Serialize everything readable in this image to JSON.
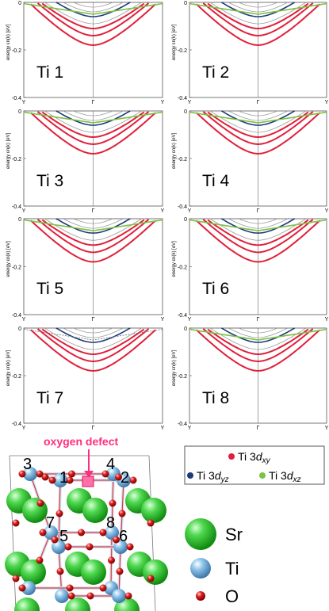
{
  "panels": [
    {
      "label": "Ti 1"
    },
    {
      "label": "Ti 2"
    },
    {
      "label": "Ti 3"
    },
    {
      "label": "Ti 4"
    },
    {
      "label": "Ti 5"
    },
    {
      "label": "Ti 6"
    },
    {
      "label": "Ti 7"
    },
    {
      "label": "Ti 8"
    }
  ],
  "axes": {
    "ylabel": "energy εn(k) [eV]",
    "yticks": [
      "0",
      "-0.2",
      "-0.4"
    ],
    "xticks": [
      "Y",
      "Γ",
      "Y"
    ]
  },
  "colors": {
    "dxy": "#e0203a",
    "dyz": "#1e3a7a",
    "dxz": "#7cc244",
    "gray": "#9a9a9a",
    "Sr": "#3cc83c",
    "Ti": "#7eb6e0",
    "O": "#d81818",
    "defect": "#ff2e7e"
  },
  "orbital_legend": {
    "dxy": {
      "prefix": "Ti 3",
      "d": "d",
      "sub": "xy"
    },
    "dyz": {
      "prefix": "Ti 3",
      "d": "d",
      "sub": "yz"
    },
    "dxz": {
      "prefix": "Ti 3",
      "d": "d",
      "sub": "xz"
    }
  },
  "structure": {
    "defect_label": "oxygen defect",
    "site_numbers": [
      "3",
      "1",
      "4",
      "2",
      "7",
      "5",
      "8",
      "6"
    ]
  },
  "atom_legend": {
    "sr": "Sr",
    "ti": "Ti",
    "o": "O"
  }
}
